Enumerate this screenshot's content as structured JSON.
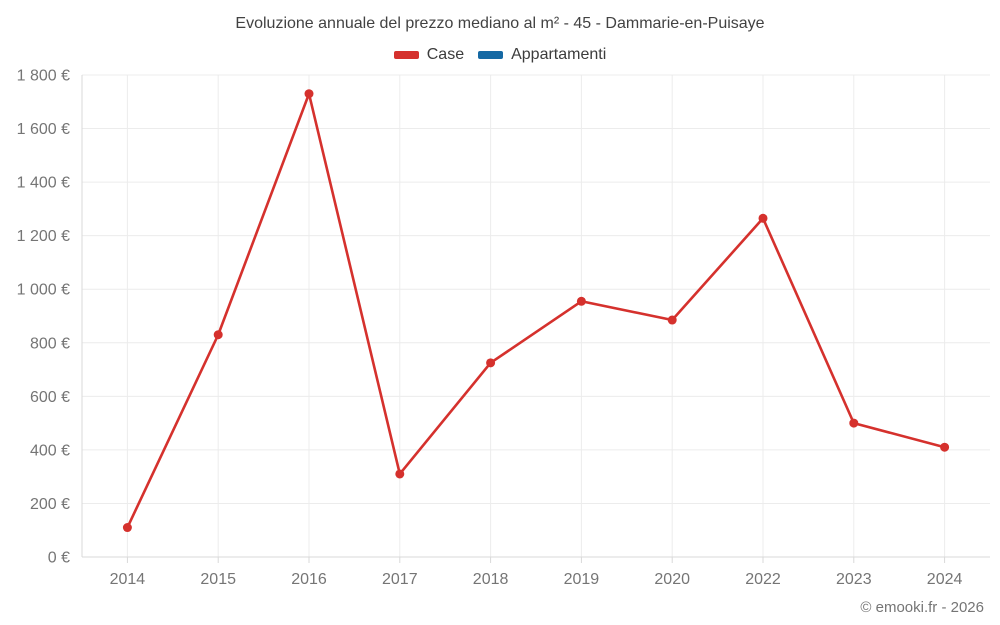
{
  "page": {
    "title": "Evoluzione annuale del prezzo mediano al m² - 45 - Dammarie-en-Puisaye",
    "copyright": "© emooki.fr - 2026"
  },
  "legend": {
    "items": [
      {
        "label": "Case",
        "color": "#d5312d"
      },
      {
        "label": "Appartamenti",
        "color": "#1569a4"
      }
    ]
  },
  "colors": {
    "case_red": "#d5312d",
    "appartamenti_blue": "#1569a4",
    "gridline": "#ececec",
    "axis": "#d9d9d9",
    "tick_text": "#757575",
    "title_text": "#424242"
  },
  "chart_data": {
    "type": "line",
    "title": "Evoluzione annuale del prezzo mediano al m² - 45 - Dammarie-en-Puisaye",
    "categories": [
      "2014",
      "2015",
      "2016",
      "2017",
      "2018",
      "2019",
      "2020",
      "2022",
      "2023",
      "2024"
    ],
    "series": [
      {
        "name": "Case",
        "color": "#d5312d",
        "values": [
          110,
          830,
          1730,
          310,
          725,
          955,
          885,
          1265,
          500,
          410
        ]
      },
      {
        "name": "Appartamenti",
        "color": "#1569a4",
        "values": []
      }
    ],
    "xlabel": "",
    "ylabel": "",
    "ylim": [
      0,
      1800
    ],
    "y_tick_step": 200,
    "y_tick_labels": [
      "0 €",
      "200 €",
      "400 €",
      "600 €",
      "800 €",
      "1 000 €",
      "1 200 €",
      "1 400 €",
      "1 600 €",
      "1 800 €"
    ],
    "grid": true,
    "legend_position": "top",
    "currency": "€"
  }
}
